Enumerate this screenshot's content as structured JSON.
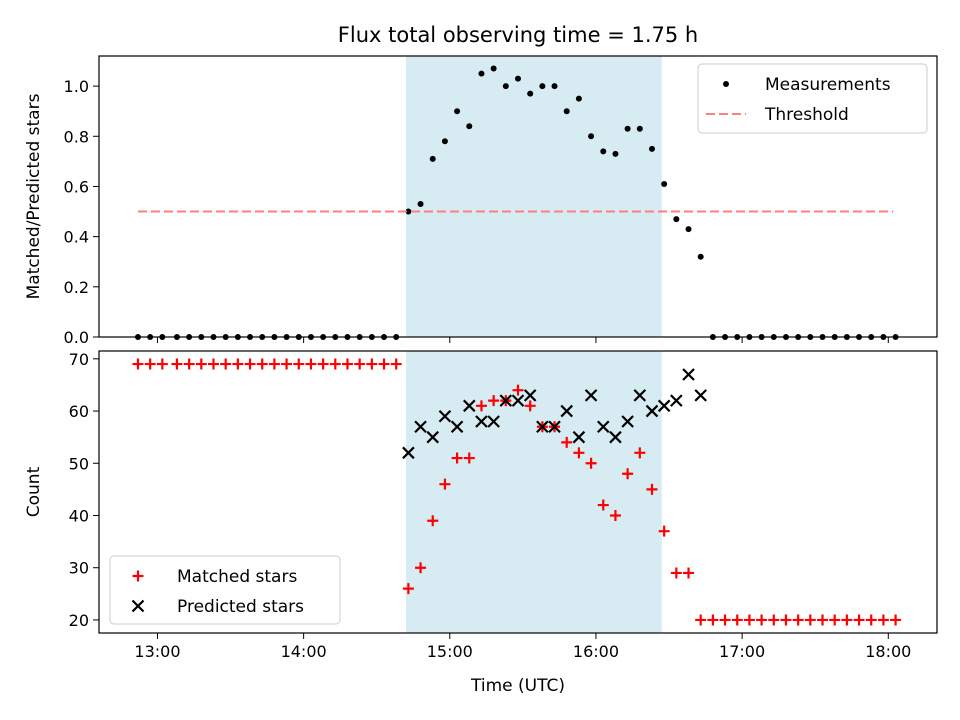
{
  "chart_data": [
    {
      "type": "scatter",
      "title": "Flux total observing time = 1.75 h",
      "xlabel": "",
      "ylabel": "Matched/Predicted stars",
      "xlim": [
        "12:36",
        "18:20"
      ],
      "ylim": [
        0,
        1.12
      ],
      "yticks": [
        0.0,
        0.2,
        0.4,
        0.6,
        0.8,
        1.0
      ],
      "ytick_labels": [
        "0.0",
        "0.2",
        "0.4",
        "0.6",
        "0.8",
        "1.0"
      ],
      "xticks": [
        "13:00",
        "14:00",
        "15:00",
        "16:00",
        "17:00",
        "18:00"
      ],
      "grid": false,
      "legend_position": "upper-right",
      "shaded_interval": {
        "start": "14:42",
        "end": "16:27",
        "color": "#add8e6"
      },
      "series": [
        {
          "name": "Measurements",
          "marker": "dot",
          "color": "#000000",
          "points": [
            [
              "12:52",
              0.0
            ],
            [
              "12:57",
              0.0
            ],
            [
              "13:02",
              0.0
            ],
            [
              "13:08",
              0.0
            ],
            [
              "13:13",
              0.0
            ],
            [
              "13:18",
              0.0
            ],
            [
              "13:23",
              0.0
            ],
            [
              "13:28",
              0.0
            ],
            [
              "13:33",
              0.0
            ],
            [
              "13:38",
              0.0
            ],
            [
              "13:43",
              0.0
            ],
            [
              "13:48",
              0.0
            ],
            [
              "13:53",
              0.0
            ],
            [
              "13:58",
              0.0
            ],
            [
              "14:03",
              0.0
            ],
            [
              "14:08",
              0.0
            ],
            [
              "14:13",
              0.0
            ],
            [
              "14:18",
              0.0
            ],
            [
              "14:23",
              0.0
            ],
            [
              "14:28",
              0.0
            ],
            [
              "14:33",
              0.0
            ],
            [
              "14:38",
              0.0
            ],
            [
              "14:43",
              0.5
            ],
            [
              "14:48",
              0.53
            ],
            [
              "14:53",
              0.71
            ],
            [
              "14:58",
              0.78
            ],
            [
              "15:03",
              0.9
            ],
            [
              "15:08",
              0.84
            ],
            [
              "15:13",
              1.05
            ],
            [
              "15:18",
              1.07
            ],
            [
              "15:23",
              1.0
            ],
            [
              "15:28",
              1.03
            ],
            [
              "15:33",
              0.97
            ],
            [
              "15:38",
              1.0
            ],
            [
              "15:43",
              1.0
            ],
            [
              "15:48",
              0.9
            ],
            [
              "15:53",
              0.95
            ],
            [
              "15:58",
              0.8
            ],
            [
              "16:03",
              0.74
            ],
            [
              "16:08",
              0.73
            ],
            [
              "16:13",
              0.83
            ],
            [
              "16:18",
              0.83
            ],
            [
              "16:23",
              0.75
            ],
            [
              "16:28",
              0.61
            ],
            [
              "16:33",
              0.47
            ],
            [
              "16:38",
              0.43
            ],
            [
              "16:43",
              0.32
            ],
            [
              "16:48",
              0.0
            ],
            [
              "16:53",
              0.0
            ],
            [
              "16:58",
              0.0
            ],
            [
              "17:03",
              0.0
            ],
            [
              "17:08",
              0.0
            ],
            [
              "17:13",
              0.0
            ],
            [
              "17:18",
              0.0
            ],
            [
              "17:23",
              0.0
            ],
            [
              "17:28",
              0.0
            ],
            [
              "17:33",
              0.0
            ],
            [
              "17:38",
              0.0
            ],
            [
              "17:43",
              0.0
            ],
            [
              "17:48",
              0.0
            ],
            [
              "17:53",
              0.0
            ],
            [
              "17:58",
              0.0
            ],
            [
              "18:03",
              0.0
            ]
          ]
        },
        {
          "name": "Threshold",
          "style": "dashed-line",
          "color": "#ff7f7f",
          "points": [
            [
              "12:52",
              0.5
            ],
            [
              "18:02",
              0.5
            ]
          ]
        }
      ]
    },
    {
      "type": "scatter",
      "title": "",
      "xlabel": "Time (UTC)",
      "ylabel": "Count",
      "xlim": [
        "12:36",
        "18:20"
      ],
      "ylim": [
        17.5,
        71.5
      ],
      "yticks": [
        20,
        30,
        40,
        50,
        60,
        70
      ],
      "ytick_labels": [
        "20",
        "30",
        "40",
        "50",
        "60",
        "70"
      ],
      "xticks": [
        "13:00",
        "14:00",
        "15:00",
        "16:00",
        "17:00",
        "18:00"
      ],
      "xtick_labels": [
        "13:00",
        "14:00",
        "15:00",
        "16:00",
        "17:00",
        "18:00"
      ],
      "grid": false,
      "legend_position": "lower-left",
      "shaded_interval": {
        "start": "14:42",
        "end": "16:27",
        "color": "#add8e6"
      },
      "series": [
        {
          "name": "Matched stars",
          "marker": "plus",
          "color": "#ff0000",
          "points": [
            [
              "12:52",
              69
            ],
            [
              "12:57",
              69
            ],
            [
              "13:02",
              69
            ],
            [
              "13:08",
              69
            ],
            [
              "13:13",
              69
            ],
            [
              "13:18",
              69
            ],
            [
              "13:23",
              69
            ],
            [
              "13:28",
              69
            ],
            [
              "13:33",
              69
            ],
            [
              "13:38",
              69
            ],
            [
              "13:43",
              69
            ],
            [
              "13:48",
              69
            ],
            [
              "13:53",
              69
            ],
            [
              "13:58",
              69
            ],
            [
              "14:03",
              69
            ],
            [
              "14:08",
              69
            ],
            [
              "14:13",
              69
            ],
            [
              "14:18",
              69
            ],
            [
              "14:23",
              69
            ],
            [
              "14:28",
              69
            ],
            [
              "14:33",
              69
            ],
            [
              "14:38",
              69
            ],
            [
              "14:43",
              26
            ],
            [
              "14:48",
              30
            ],
            [
              "14:53",
              39
            ],
            [
              "14:58",
              46
            ],
            [
              "15:03",
              51
            ],
            [
              "15:08",
              51
            ],
            [
              "15:13",
              61
            ],
            [
              "15:18",
              62
            ],
            [
              "15:23",
              62
            ],
            [
              "15:28",
              64
            ],
            [
              "15:33",
              61
            ],
            [
              "15:38",
              57
            ],
            [
              "15:43",
              57
            ],
            [
              "15:48",
              54
            ],
            [
              "15:53",
              52
            ],
            [
              "15:58",
              50
            ],
            [
              "16:03",
              42
            ],
            [
              "16:08",
              40
            ],
            [
              "16:13",
              48
            ],
            [
              "16:18",
              52
            ],
            [
              "16:23",
              45
            ],
            [
              "16:28",
              37
            ],
            [
              "16:33",
              29
            ],
            [
              "16:38",
              29
            ],
            [
              "16:43",
              20
            ],
            [
              "16:48",
              20
            ],
            [
              "16:53",
              20
            ],
            [
              "16:58",
              20
            ],
            [
              "17:03",
              20
            ],
            [
              "17:08",
              20
            ],
            [
              "17:13",
              20
            ],
            [
              "17:18",
              20
            ],
            [
              "17:23",
              20
            ],
            [
              "17:28",
              20
            ],
            [
              "17:33",
              20
            ],
            [
              "17:38",
              20
            ],
            [
              "17:43",
              20
            ],
            [
              "17:48",
              20
            ],
            [
              "17:53",
              20
            ],
            [
              "17:58",
              20
            ],
            [
              "18:03",
              20
            ]
          ]
        },
        {
          "name": "Predicted stars",
          "marker": "x",
          "color": "#000000",
          "points": [
            [
              "14:43",
              52
            ],
            [
              "14:48",
              57
            ],
            [
              "14:53",
              55
            ],
            [
              "14:58",
              59
            ],
            [
              "15:03",
              57
            ],
            [
              "15:08",
              61
            ],
            [
              "15:13",
              58
            ],
            [
              "15:18",
              58
            ],
            [
              "15:23",
              62
            ],
            [
              "15:28",
              62
            ],
            [
              "15:33",
              63
            ],
            [
              "15:38",
              57
            ],
            [
              "15:43",
              57
            ],
            [
              "15:48",
              60
            ],
            [
              "15:53",
              55
            ],
            [
              "15:58",
              63
            ],
            [
              "16:03",
              57
            ],
            [
              "16:08",
              55
            ],
            [
              "16:13",
              58
            ],
            [
              "16:18",
              63
            ],
            [
              "16:23",
              60
            ],
            [
              "16:28",
              61
            ],
            [
              "16:33",
              62
            ],
            [
              "16:38",
              67
            ],
            [
              "16:43",
              63
            ]
          ]
        }
      ]
    }
  ]
}
